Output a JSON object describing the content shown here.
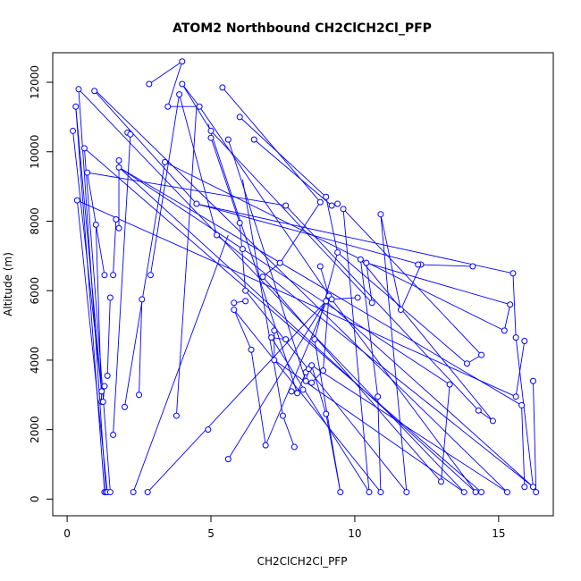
{
  "chart_data": {
    "type": "line",
    "title": "ATOM2 Northbound CH2ClCH2Cl_PFP",
    "xlabel": "CH2ClCH2Cl_PFP",
    "ylabel": "Altitude (m)",
    "xlim": [
      -0.5,
      16.9
    ],
    "ylim": [
      -480,
      12850
    ],
    "xticks": [
      0,
      5,
      10,
      15
    ],
    "yticks": [
      0,
      2000,
      4000,
      6000,
      8000,
      10000,
      12000
    ],
    "grid": false,
    "legend": "none",
    "series_color": "#0000ff",
    "marker": "open-circle",
    "series": [
      {
        "name": "",
        "points": [
          [
            0.2,
            10600
          ],
          [
            0.3,
            11300
          ],
          [
            0.4,
            11800
          ],
          [
            1.2,
            3100
          ],
          [
            0.35,
            8600
          ],
          [
            1.3,
            200
          ],
          [
            0.6,
            10100
          ],
          [
            1.35,
            200
          ],
          [
            0.7,
            9400
          ],
          [
            1.4,
            200
          ],
          [
            1.0,
            7900
          ],
          [
            1.5,
            200
          ],
          [
            1.3,
            6450
          ],
          [
            1.2,
            2800
          ],
          [
            0.95,
            11750
          ],
          [
            4.5,
            8500
          ],
          [
            1.8,
            9750
          ],
          [
            1.8,
            7800
          ],
          [
            1.7,
            8050
          ],
          [
            1.6,
            6450
          ],
          [
            1.5,
            5800
          ],
          [
            1.4,
            3550
          ],
          [
            1.3,
            3250
          ],
          [
            1.25,
            2800
          ],
          [
            2.1,
            10550
          ],
          [
            2.2,
            10500
          ],
          [
            1.6,
            1850
          ],
          [
            2.0,
            2650
          ],
          [
            1.8,
            9550
          ],
          [
            6.1,
            7200
          ],
          [
            7.6,
            8450
          ],
          [
            2.5,
            3000
          ],
          [
            2.6,
            5750
          ],
          [
            2.9,
            6450
          ],
          [
            3.9,
            11650
          ],
          [
            2.85,
            11950
          ],
          [
            4.0,
            12600
          ],
          [
            3.5,
            11300
          ],
          [
            4.6,
            11300
          ],
          [
            4.0,
            11950
          ],
          [
            5.0,
            10600
          ],
          [
            5.6,
            10350
          ],
          [
            5.2,
            7600
          ],
          [
            5.4,
            11850
          ],
          [
            6.0,
            11000
          ],
          [
            6.5,
            10350
          ],
          [
            5.0,
            10400
          ],
          [
            6.0,
            7950
          ],
          [
            6.2,
            6000
          ],
          [
            6.2,
            5700
          ],
          [
            5.8,
            5650
          ],
          [
            5.8,
            5450
          ],
          [
            6.4,
            4300
          ],
          [
            6.9,
            1550
          ],
          [
            6.8,
            6400
          ],
          [
            7.4,
            6800
          ],
          [
            8.8,
            8550
          ],
          [
            9.0,
            8700
          ],
          [
            9.2,
            8450
          ],
          [
            9.4,
            8500
          ],
          [
            9.6,
            8350
          ],
          [
            9.4,
            7100
          ],
          [
            8.6,
            4600
          ],
          [
            8.8,
            6700
          ],
          [
            9.1,
            5850
          ],
          [
            8.9,
            3700
          ],
          [
            8.5,
            3350
          ],
          [
            8.2,
            3150
          ],
          [
            7.8,
            3100
          ],
          [
            7.6,
            4600
          ],
          [
            7.1,
            4650
          ],
          [
            7.2,
            4850
          ],
          [
            7.2,
            4000
          ],
          [
            7.5,
            2400
          ],
          [
            7.9,
            1500
          ],
          [
            8.0,
            3050
          ],
          [
            8.3,
            3650
          ],
          [
            8.3,
            3400
          ],
          [
            8.4,
            3750
          ],
          [
            8.5,
            3850
          ],
          [
            9.0,
            2450
          ],
          [
            9.5,
            200
          ],
          [
            9.2,
            5750
          ],
          [
            10.1,
            5800
          ],
          [
            10.6,
            5650
          ],
          [
            10.4,
            6800
          ],
          [
            10.2,
            6900
          ],
          [
            10.8,
            2950
          ],
          [
            10.9,
            200
          ],
          [
            10.5,
            200
          ],
          [
            10.9,
            8200
          ],
          [
            11.8,
            200
          ],
          [
            11.6,
            5450
          ],
          [
            12.3,
            6750
          ],
          [
            12.2,
            6750
          ],
          [
            13.0,
            500
          ],
          [
            13.3,
            3300
          ],
          [
            13.9,
            3900
          ],
          [
            14.1,
            6700
          ],
          [
            14.4,
            4150
          ],
          [
            14.3,
            2550
          ],
          [
            14.8,
            2250
          ],
          [
            15.2,
            4850
          ],
          [
            15.4,
            5600
          ],
          [
            15.5,
            6500
          ],
          [
            15.6,
            4650
          ],
          [
            15.6,
            2950
          ],
          [
            15.9,
            4550
          ],
          [
            15.8,
            2700
          ],
          [
            15.9,
            350
          ],
          [
            16.2,
            3400
          ],
          [
            16.3,
            200
          ],
          [
            16.2,
            350
          ],
          [
            14.2,
            200
          ],
          [
            13.8,
            200
          ],
          [
            15.3,
            200
          ],
          [
            14.4,
            200
          ],
          [
            2.3,
            200
          ],
          [
            2.8,
            200
          ],
          [
            3.4,
            9700
          ],
          [
            3.8,
            2400
          ],
          [
            5.6,
            1150
          ],
          [
            9.0,
            5700
          ],
          [
            4.9,
            2000
          ]
        ],
        "segments": [
          [
            0.2,
            10600,
            1.2,
            3100
          ],
          [
            1.2,
            3100,
            0.3,
            11300
          ],
          [
            0.3,
            11300,
            1.3,
            200
          ],
          [
            0.4,
            11800,
            1.35,
            200
          ],
          [
            0.35,
            8600,
            1.4,
            200
          ],
          [
            0.6,
            10100,
            1.5,
            200
          ],
          [
            0.7,
            9400,
            1.3,
            6450
          ],
          [
            1.0,
            7900,
            1.2,
            2800
          ],
          [
            0.95,
            11750,
            4.5,
            8500
          ],
          [
            1.8,
            9750,
            1.8,
            7800
          ],
          [
            1.7,
            8050,
            1.6,
            6450
          ],
          [
            1.5,
            5800,
            1.4,
            3550
          ],
          [
            1.3,
            3250,
            1.25,
            2800
          ],
          [
            2.1,
            10550,
            2.2,
            10500
          ],
          [
            2.2,
            10500,
            1.6,
            1850
          ],
          [
            2.0,
            2650,
            3.4,
            9700
          ],
          [
            1.8,
            9550,
            6.1,
            7200
          ],
          [
            0.7,
            9400,
            7.6,
            8450
          ],
          [
            2.5,
            3000,
            2.6,
            5750
          ],
          [
            2.9,
            6450,
            3.9,
            11650
          ],
          [
            2.85,
            11950,
            4.0,
            12600
          ],
          [
            4.0,
            12600,
            3.5,
            11300
          ],
          [
            3.5,
            11300,
            4.6,
            11300
          ],
          [
            4.6,
            11300,
            4.0,
            11950
          ],
          [
            4.0,
            11950,
            5.0,
            10600
          ],
          [
            3.9,
            11650,
            5.2,
            7600
          ],
          [
            5.4,
            11850,
            8.8,
            8550
          ],
          [
            6.0,
            11000,
            9.0,
            8700
          ],
          [
            6.5,
            10350,
            9.2,
            8450
          ],
          [
            5.0,
            10400,
            6.0,
            7950
          ],
          [
            6.0,
            7950,
            6.2,
            6000
          ],
          [
            6.2,
            5700,
            5.8,
            5650
          ],
          [
            5.8,
            5450,
            6.4,
            4300
          ],
          [
            6.4,
            4300,
            6.9,
            1550
          ],
          [
            6.8,
            6400,
            7.4,
            6800
          ],
          [
            7.4,
            6800,
            8.8,
            8550
          ],
          [
            9.0,
            8700,
            9.4,
            7100
          ],
          [
            9.4,
            7100,
            8.6,
            4600
          ],
          [
            8.8,
            6700,
            9.1,
            5850
          ],
          [
            9.1,
            5850,
            8.9,
            3700
          ],
          [
            8.9,
            3700,
            8.5,
            3350
          ],
          [
            8.2,
            3150,
            7.8,
            3100
          ],
          [
            7.6,
            4600,
            7.1,
            4650
          ],
          [
            7.2,
            4850,
            7.2,
            4000
          ],
          [
            7.5,
            2400,
            7.9,
            1500
          ],
          [
            8.0,
            3050,
            8.3,
            3650
          ],
          [
            8.3,
            3400,
            8.4,
            3750
          ],
          [
            8.5,
            3850,
            9.0,
            2450
          ],
          [
            9.0,
            2450,
            9.5,
            200
          ],
          [
            9.2,
            5750,
            10.1,
            5800
          ],
          [
            10.6,
            5650,
            10.4,
            6800
          ],
          [
            10.2,
            6900,
            10.8,
            2950
          ],
          [
            10.8,
            2950,
            10.9,
            200
          ],
          [
            9.6,
            8350,
            10.5,
            200
          ],
          [
            10.9,
            8200,
            11.8,
            200
          ],
          [
            11.6,
            5450,
            12.3,
            6750
          ],
          [
            12.2,
            6750,
            14.1,
            6700
          ],
          [
            13.0,
            500,
            13.3,
            3300
          ],
          [
            13.9,
            3900,
            14.4,
            4150
          ],
          [
            14.3,
            2550,
            14.8,
            2250
          ],
          [
            15.2,
            4850,
            15.4,
            5600
          ],
          [
            15.5,
            6500,
            15.6,
            4650
          ],
          [
            15.6,
            2950,
            15.9,
            4550
          ],
          [
            15.8,
            2700,
            15.9,
            350
          ],
          [
            16.2,
            3400,
            16.3,
            200
          ],
          [
            16.2,
            350,
            15.6,
            4650
          ],
          [
            1.8,
            9550,
            14.2,
            200
          ],
          [
            0.4,
            11800,
            13.8,
            200
          ],
          [
            1.0,
            11750,
            15.3,
            200
          ],
          [
            0.6,
            10100,
            14.4,
            200
          ],
          [
            2.3,
            200,
            5.6,
            7600
          ],
          [
            2.8,
            200,
            9.0,
            5700
          ],
          [
            3.8,
            2400,
            4.5,
            11300
          ],
          [
            5.6,
            1150,
            9.0,
            5700
          ],
          [
            4.5,
            8500,
            15.5,
            6500
          ],
          [
            5.2,
            7600,
            16.2,
            350
          ],
          [
            4.5,
            8500,
            12.3,
            6750
          ],
          [
            3.4,
            9700,
            15.2,
            4850
          ],
          [
            0.35,
            8600,
            15.6,
            2950
          ],
          [
            1.8,
            9550,
            15.8,
            2700
          ],
          [
            4.6,
            11300,
            9.2,
            5750
          ],
          [
            5.0,
            10600,
            10.6,
            5650
          ],
          [
            6.1,
            7200,
            13.3,
            3300
          ],
          [
            7.6,
            8450,
            14.3,
            2550
          ],
          [
            9.0,
            5700,
            16.2,
            350
          ],
          [
            9.2,
            5750,
            14.2,
            200
          ],
          [
            8.6,
            4600,
            9.5,
            200
          ],
          [
            6.9,
            1550,
            9.1,
            5850
          ],
          [
            5.6,
            10350,
            8.3,
            3400
          ],
          [
            6.1,
            9200,
            7.5,
            2400
          ],
          [
            4.9,
            10800,
            8.0,
            3050
          ],
          [
            10.9,
            8200,
            11.6,
            5450
          ],
          [
            9.4,
            7100,
            13.9,
            3900
          ],
          [
            9.6,
            8350,
            14.4,
            4150
          ],
          [
            10.2,
            6900,
            14.8,
            2250
          ],
          [
            10.4,
            6800,
            15.4,
            5600
          ],
          [
            5.8,
            5450,
            10.9,
            200
          ],
          [
            6.2,
            6000,
            11.8,
            200
          ],
          [
            7.1,
            4650,
            10.5,
            200
          ],
          [
            6.8,
            6400,
            13.0,
            500
          ],
          [
            7.2,
            4000,
            13.8,
            200
          ],
          [
            8.5,
            3850,
            15.3,
            200
          ]
        ]
      }
    ]
  }
}
